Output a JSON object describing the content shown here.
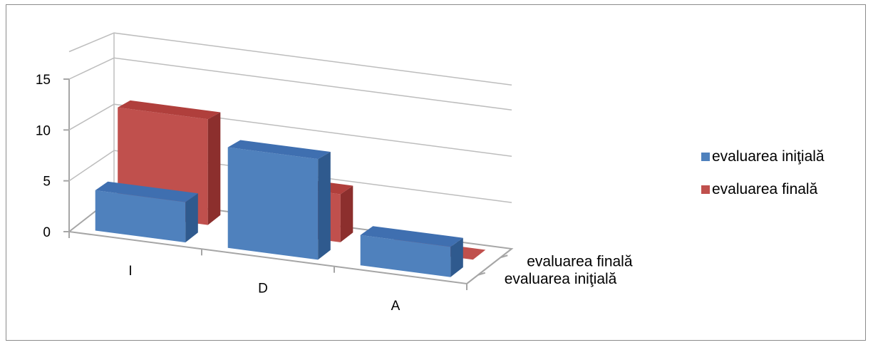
{
  "chart_data": {
    "type": "bar",
    "subtype": "3d-column",
    "categories": [
      "I",
      "D",
      "A"
    ],
    "series": [
      {
        "name": "evaluarea iniţială",
        "values": [
          4,
          10,
          3
        ],
        "color": "#4f81bd",
        "top_color": "#3f6fb0",
        "side_color": "#2f5a8e"
      },
      {
        "name": "evaluarea finală",
        "values": [
          11,
          5,
          0
        ],
        "color": "#c0504d",
        "top_color": "#b03f3c",
        "side_color": "#8c2f2d"
      }
    ],
    "depth_labels": [
      "evaluarea iniţială",
      "evaluarea finală"
    ],
    "y_ticks": [
      0,
      5,
      10,
      15
    ],
    "ylim": [
      0,
      15
    ],
    "grid": true,
    "legend": {
      "position": "right"
    }
  }
}
